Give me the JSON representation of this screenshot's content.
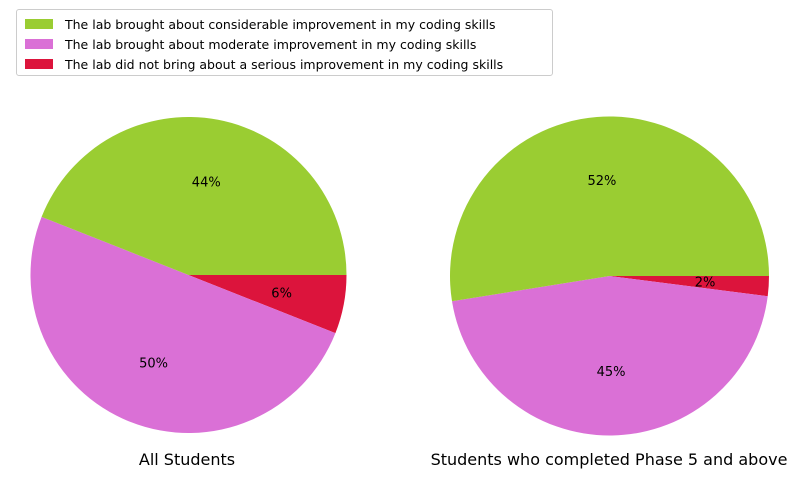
{
  "colors": {
    "considerable": "#9acd32",
    "moderate": "#da70d6",
    "none": "#dc143c"
  },
  "legend": [
    {
      "label": "The lab brought about considerable improvement in my coding skills",
      "color": "#9acd32"
    },
    {
      "label": "The lab brought about moderate improvement in my coding skills",
      "color": "#da70d6"
    },
    {
      "label": "The lab did not bring about a serious improvement in my coding skills",
      "color": "#dc143c"
    }
  ],
  "chart_data": [
    {
      "type": "pie",
      "title": "All Students",
      "legend_position": "top-left",
      "slices": [
        {
          "category": "The lab brought about considerable improvement in my coding skills",
          "value": 44,
          "label": "44%",
          "color": "#9acd32"
        },
        {
          "category": "The lab brought about moderate improvement in my coding skills",
          "value": 50,
          "label": "50%",
          "color": "#da70d6"
        },
        {
          "category": "The lab did not bring about a serious improvement in my coding skills",
          "value": 6,
          "label": "6%",
          "color": "#dc143c"
        }
      ]
    },
    {
      "type": "pie",
      "title": "Students who completed Phase 5 and above",
      "legend_position": "top-left",
      "slices": [
        {
          "category": "The lab brought about considerable improvement in my coding skills",
          "value": 52,
          "label": "52%",
          "color": "#9acd32"
        },
        {
          "category": "The lab brought about moderate improvement in my coding skills",
          "value": 45,
          "label": "45%",
          "color": "#da70d6"
        },
        {
          "category": "The lab did not bring about a serious improvement in my coding skills",
          "value": 2,
          "label": "2%",
          "color": "#dc143c"
        }
      ]
    }
  ]
}
